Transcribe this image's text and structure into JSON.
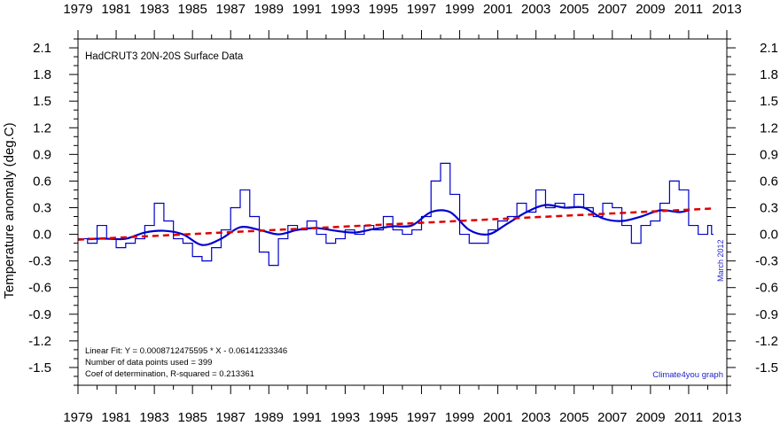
{
  "chart_data": {
    "type": "line",
    "title": "HadCRUT3 20N-20S Surface Data",
    "ylabel": "Temperature anomaly (deg.C)",
    "xlabel": "",
    "xlim": [
      1979,
      2013
    ],
    "ylim": [
      -1.7,
      2.2
    ],
    "x_ticks": [
      1979,
      1981,
      1983,
      1985,
      1987,
      1989,
      1991,
      1993,
      1995,
      1997,
      1999,
      2001,
      2003,
      2005,
      2007,
      2009,
      2011,
      2013
    ],
    "y_ticks": [
      2.1,
      1.8,
      1.5,
      1.2,
      0.9,
      0.6,
      0.3,
      0.0,
      -0.3,
      -0.6,
      -0.9,
      -1.2,
      -1.5
    ],
    "y_tick_labels": [
      "2.1",
      "1.8",
      "1.5",
      "1.2",
      "0.9",
      "0.6",
      "0.3",
      "0.0",
      "-0.3",
      "-0.6",
      "-0.9",
      "-1.2",
      "-1.5"
    ],
    "series": [
      {
        "kind": "monthly",
        "style": "step",
        "color": "#0000cc",
        "x": [
          1979.0,
          1979.5,
          1980.0,
          1980.5,
          1981.0,
          1981.5,
          1982.0,
          1982.5,
          1983.0,
          1983.5,
          1984.0,
          1984.5,
          1985.0,
          1985.5,
          1986.0,
          1986.5,
          1987.0,
          1987.5,
          1988.0,
          1988.5,
          1989.0,
          1989.5,
          1990.0,
          1990.5,
          1991.0,
          1991.5,
          1992.0,
          1992.5,
          1993.0,
          1993.5,
          1994.0,
          1994.5,
          1995.0,
          1995.5,
          1996.0,
          1996.5,
          1997.0,
          1997.5,
          1998.0,
          1998.5,
          1999.0,
          1999.5,
          2000.0,
          2000.5,
          2001.0,
          2001.5,
          2002.0,
          2002.5,
          2003.0,
          2003.5,
          2004.0,
          2004.5,
          2005.0,
          2005.5,
          2006.0,
          2006.5,
          2007.0,
          2007.5,
          2008.0,
          2008.5,
          2009.0,
          2009.5,
          2010.0,
          2010.5,
          2011.0,
          2011.5,
          2012.0,
          2012.2
        ],
        "y": [
          -0.05,
          -0.1,
          0.1,
          -0.05,
          -0.15,
          -0.1,
          -0.05,
          0.1,
          0.35,
          0.15,
          -0.05,
          -0.1,
          -0.25,
          -0.3,
          -0.15,
          0.05,
          0.3,
          0.5,
          0.2,
          -0.2,
          -0.35,
          -0.05,
          0.1,
          0.05,
          0.15,
          0.0,
          -0.1,
          -0.05,
          0.05,
          0.0,
          0.1,
          0.05,
          0.2,
          0.05,
          0.0,
          0.05,
          0.2,
          0.6,
          0.8,
          0.45,
          0.0,
          -0.1,
          -0.1,
          0.05,
          0.15,
          0.2,
          0.35,
          0.25,
          0.5,
          0.3,
          0.35,
          0.3,
          0.45,
          0.3,
          0.2,
          0.35,
          0.3,
          0.1,
          -0.1,
          0.1,
          0.15,
          0.35,
          0.6,
          0.5,
          0.1,
          0.0,
          0.1,
          0.0
        ]
      },
      {
        "kind": "running-mean",
        "style": "smooth",
        "color": "#0000cc",
        "x": [
          1979.5,
          1980.5,
          1981.5,
          1982.5,
          1983.5,
          1984.5,
          1985.5,
          1986.5,
          1987.5,
          1988.5,
          1989.5,
          1990.5,
          1991.5,
          1992.5,
          1993.5,
          1994.5,
          1995.5,
          1996.5,
          1997.5,
          1998.5,
          1999.5,
          2000.5,
          2001.5,
          2002.5,
          2003.5,
          2004.5,
          2005.5,
          2006.5,
          2007.5,
          2008.5,
          2009.5,
          2010.5,
          2011.0
        ],
        "y": [
          -0.05,
          -0.05,
          -0.05,
          0.02,
          0.04,
          0.0,
          -0.12,
          -0.05,
          0.08,
          0.05,
          0.0,
          0.05,
          0.07,
          0.04,
          0.02,
          0.06,
          0.09,
          0.1,
          0.25,
          0.25,
          0.05,
          0.0,
          0.12,
          0.25,
          0.33,
          0.3,
          0.3,
          0.18,
          0.15,
          0.2,
          0.27,
          0.25,
          0.27
        ]
      },
      {
        "kind": "linear-fit",
        "style": "dashed",
        "color": "#dd0000",
        "x": [
          1979.0,
          2012.2
        ],
        "y": [
          -0.06,
          0.29
        ]
      }
    ],
    "annotations": {
      "fit_line": "Linear Fit:   Y = 0.0008712475595 * X - 0.06141233346",
      "points_line": "Number of data points used = 399",
      "r2_line": "Coef of determination, R-squared = 0.213361",
      "credit": "Climate4you graph",
      "date_stamp": "March 2012"
    },
    "colors": {
      "data": "#0000cc",
      "trend": "#dd0000",
      "axes": "#000000"
    }
  }
}
